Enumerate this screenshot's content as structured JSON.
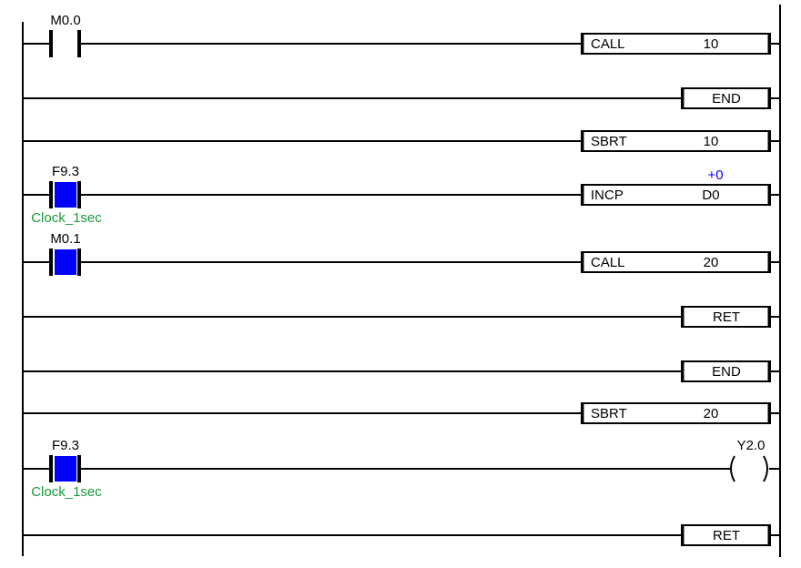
{
  "colors": {
    "line": "#000000",
    "contact_active": "#0000ff",
    "comment": "#1a9a3a",
    "value": "#0000ff"
  },
  "rungs": [
    {
      "contact": {
        "address": "M0.0",
        "active": false
      },
      "output": {
        "kind": "box",
        "op": "CALL",
        "operand": "10"
      }
    },
    {
      "output": {
        "kind": "short-box",
        "op": "END"
      }
    },
    {
      "output": {
        "kind": "box",
        "op": "SBRT",
        "operand": "10"
      }
    },
    {
      "contact": {
        "address": "F9.3",
        "active": true,
        "comment": "Clock_1sec"
      },
      "output": {
        "kind": "box",
        "op": "INCP",
        "operand": "D0",
        "current_value": "+0"
      }
    },
    {
      "contact": {
        "address": "M0.1",
        "active": true
      },
      "output": {
        "kind": "box",
        "op": "CALL",
        "operand": "20"
      }
    },
    {
      "output": {
        "kind": "short-box",
        "op": "RET"
      }
    },
    {
      "output": {
        "kind": "short-box",
        "op": "END"
      }
    },
    {
      "output": {
        "kind": "box",
        "op": "SBRT",
        "operand": "20"
      }
    },
    {
      "contact": {
        "address": "F9.3",
        "active": true,
        "comment": "Clock_1sec"
      },
      "output": {
        "kind": "coil",
        "address": "Y2.0"
      }
    },
    {
      "output": {
        "kind": "short-box",
        "op": "RET"
      }
    }
  ]
}
